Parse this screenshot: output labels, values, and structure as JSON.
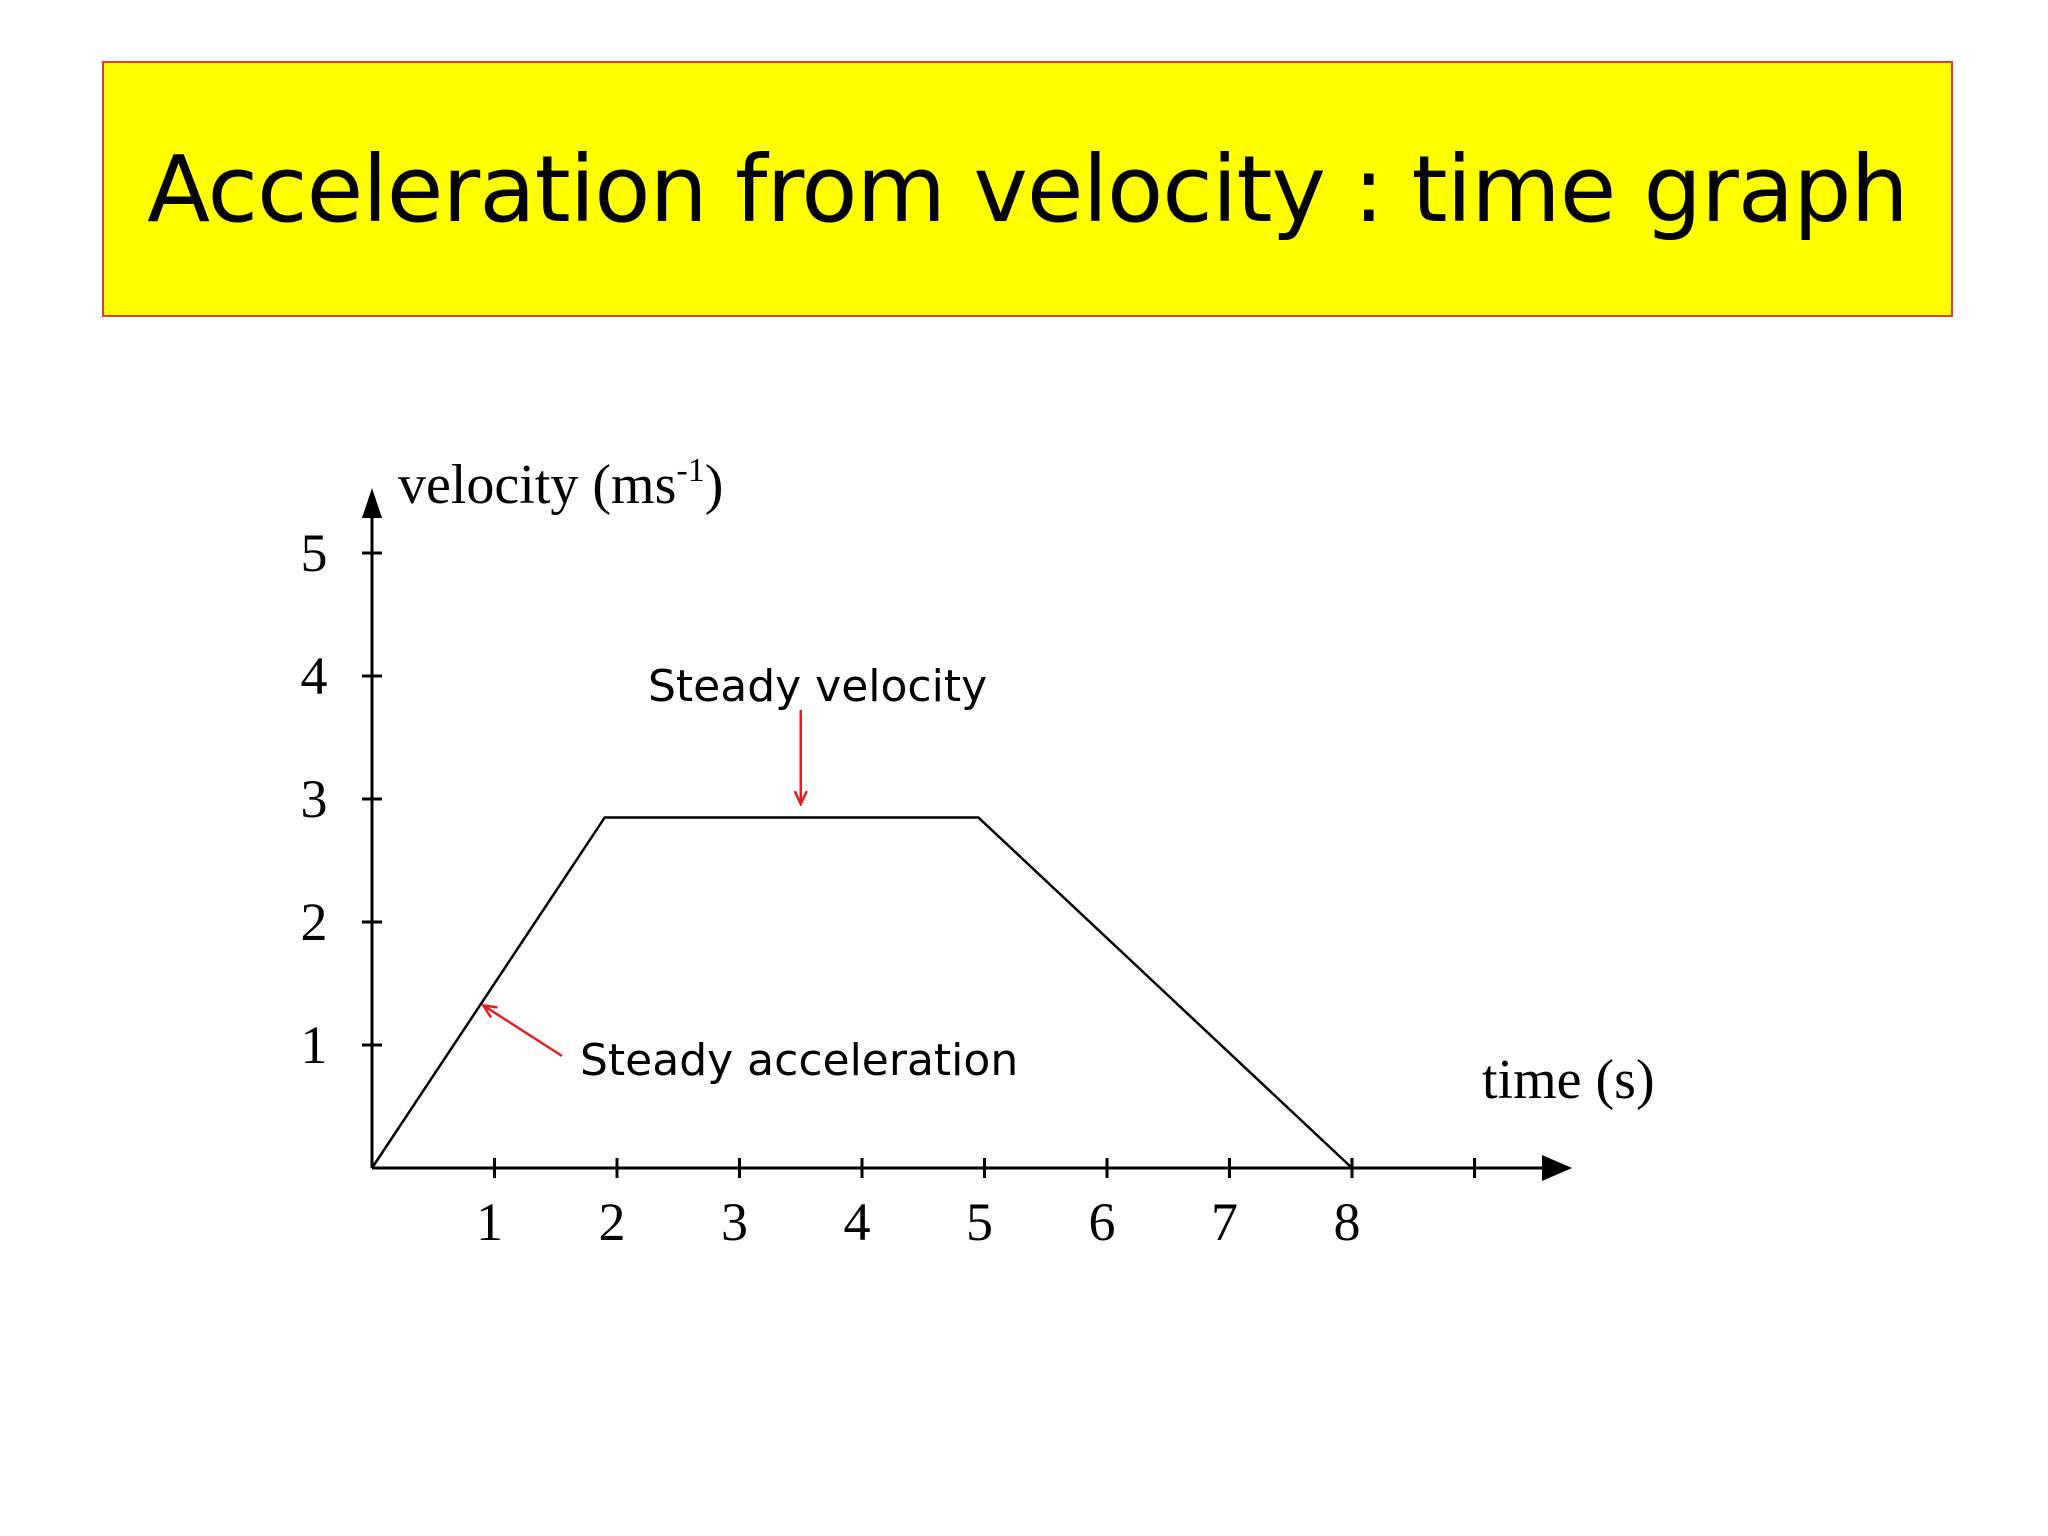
{
  "slide": {
    "title": "Acceleration from velocity : time graph"
  },
  "chart_data": {
    "type": "line",
    "title": "",
    "xlabel": "time (s)",
    "ylabel": "velocity (ms",
    "ylabel_superscript": "-1",
    "ylabel_close": ")",
    "x_ticks": [
      1,
      2,
      3,
      4,
      5,
      6,
      7,
      8
    ],
    "y_ticks": [
      1,
      2,
      3,
      4,
      5
    ],
    "xlim": [
      0,
      9.8
    ],
    "ylim": [
      0,
      5.5
    ],
    "grid": false,
    "legend": "none",
    "series": [
      {
        "x": [
          0,
          1.9,
          4.95,
          8
        ],
        "y": [
          0,
          2.85,
          2.85,
          0
        ]
      }
    ],
    "annotations": [
      {
        "text": "Steady velocity",
        "arrow_to": [
          3.5,
          2.95
        ]
      },
      {
        "text": "Steady acceleration",
        "arrow_to": [
          0.85,
          1.35
        ]
      }
    ],
    "colors": {
      "line": "#000000",
      "annotation_arrow": "#e02020",
      "title_background": "#ffff00",
      "title_border": "#e03c31"
    }
  }
}
